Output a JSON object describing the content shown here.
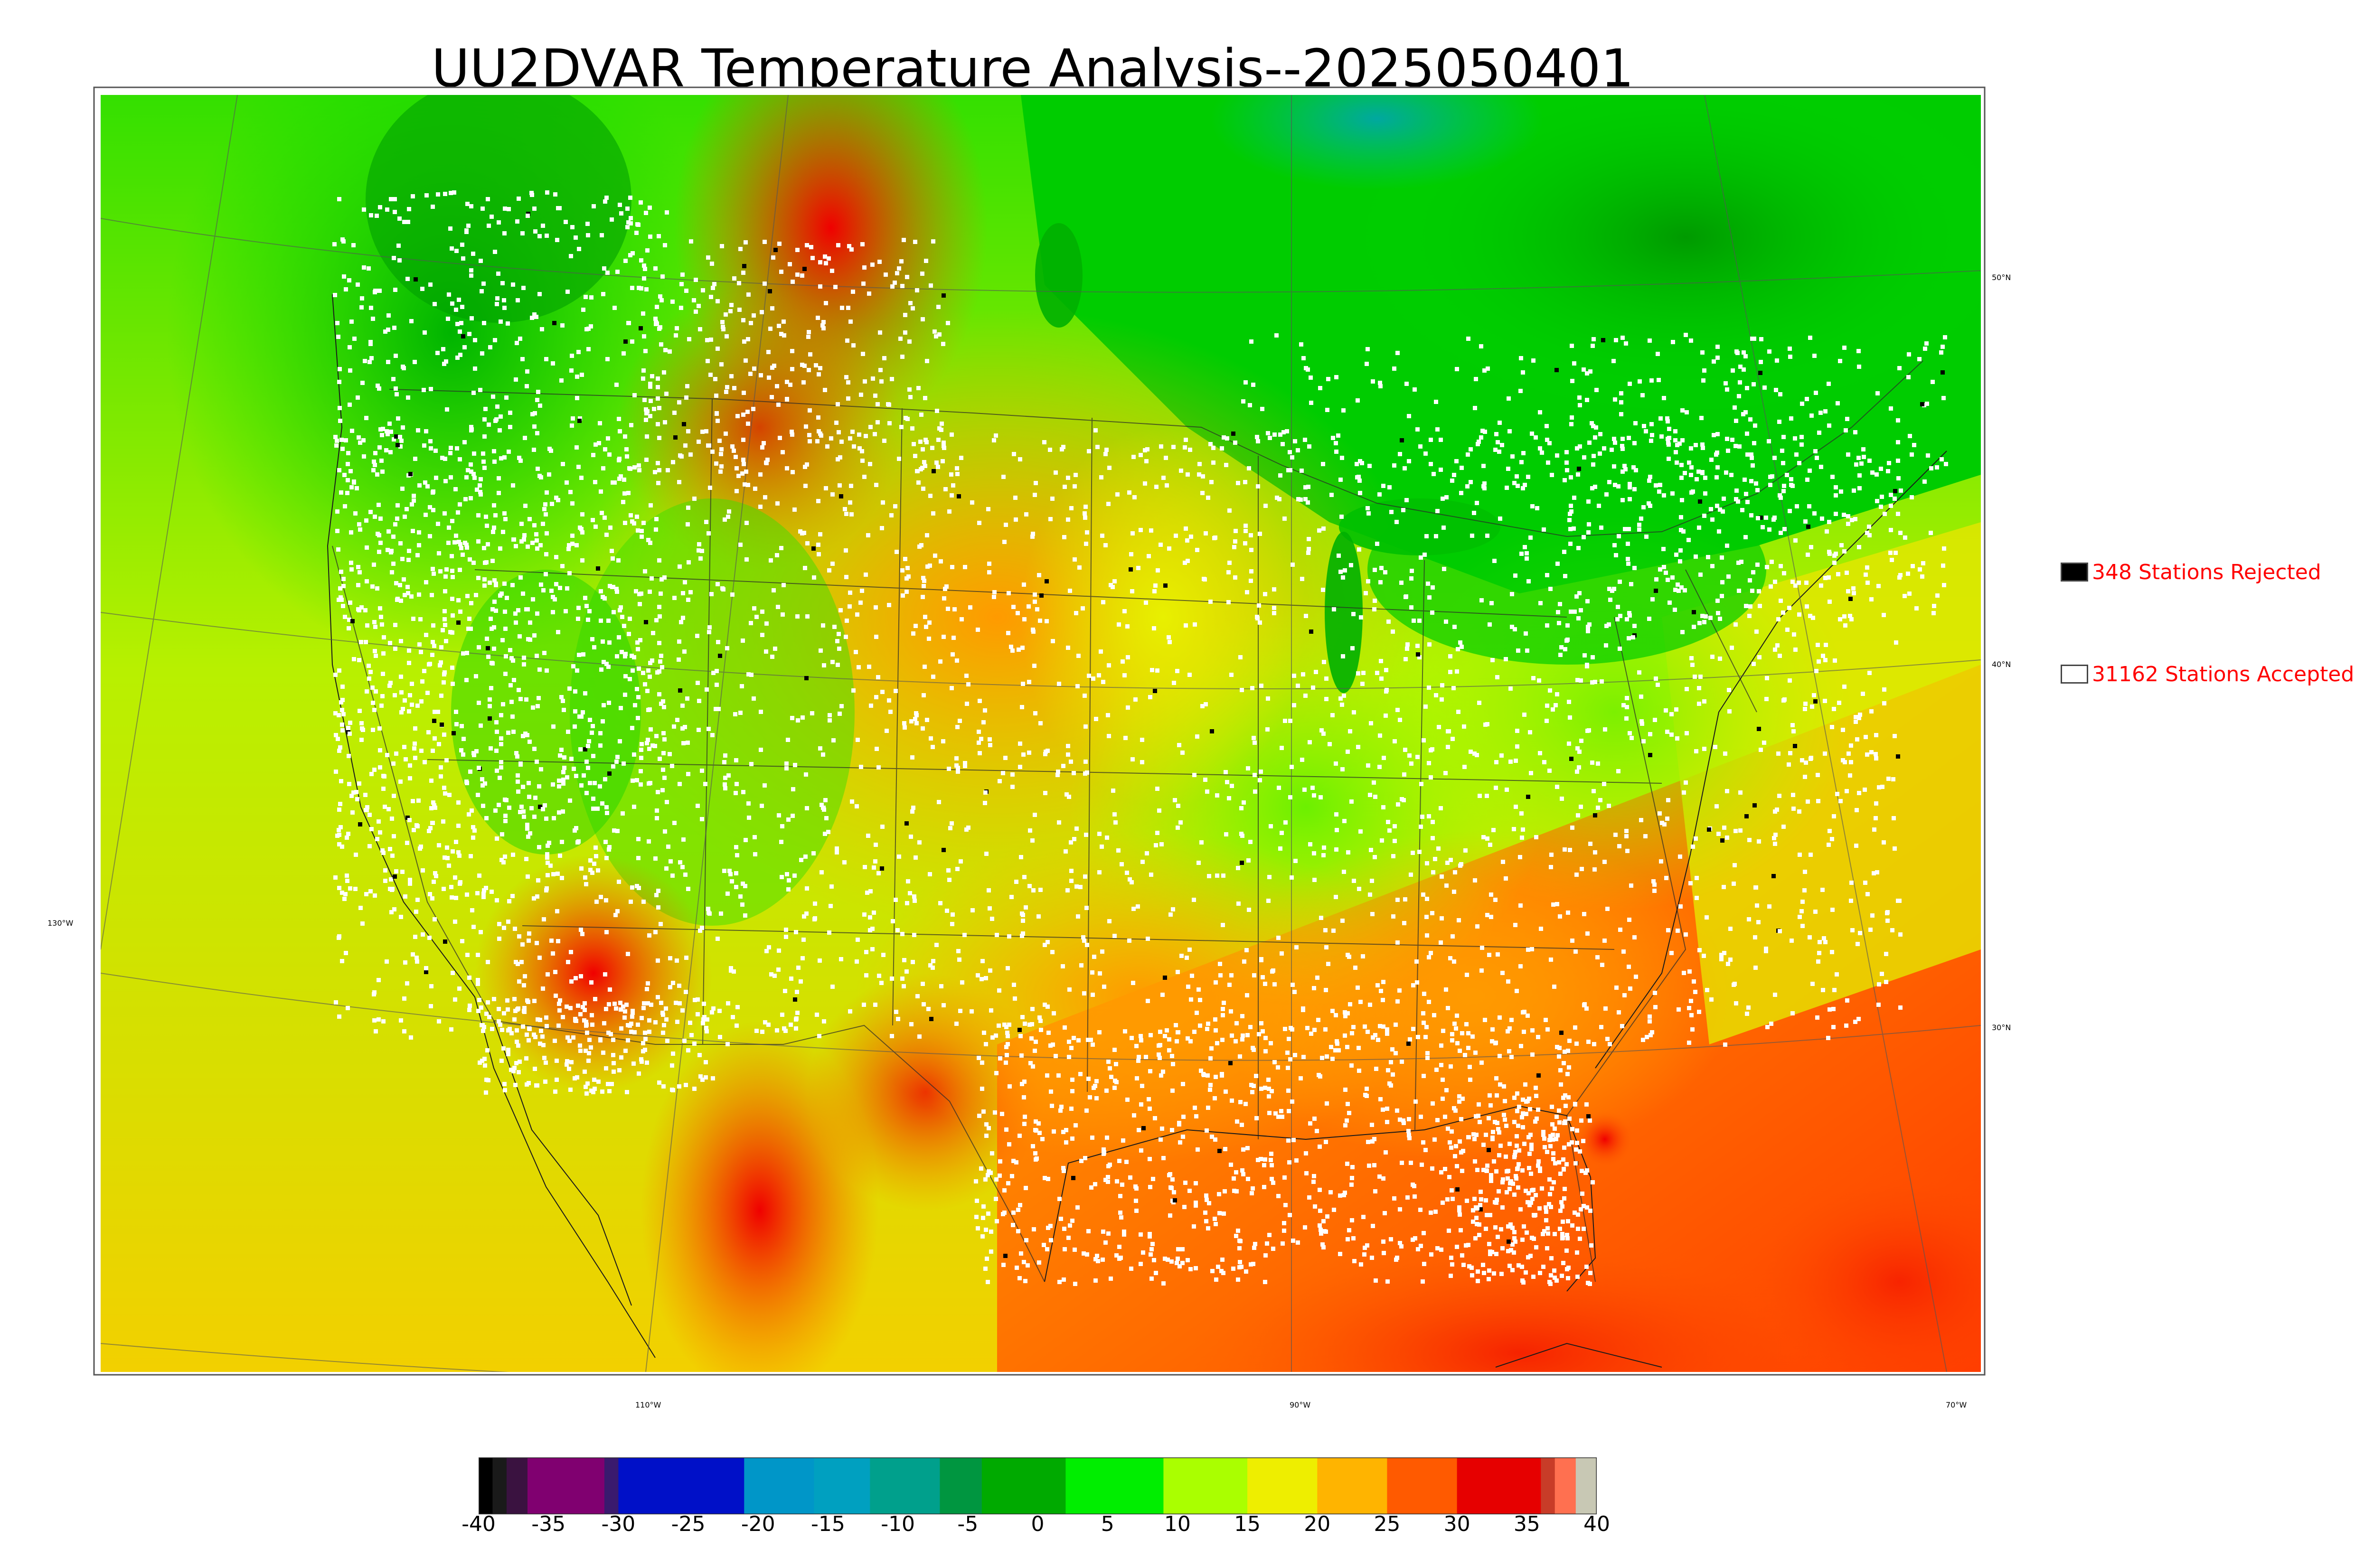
{
  "title": "UU2DVAR Temperature Analysis--2025050401",
  "legend": {
    "rejected": {
      "label": "348 Stations Rejected",
      "swatch_color": "#000000"
    },
    "accepted": {
      "label": "31162 Stations Accepted",
      "swatch_color": "#ffffff"
    }
  },
  "map_labels": {
    "lat_50": "50°N",
    "lat_40": "40°N",
    "lat_30": "30°N",
    "lon_130": "130°W",
    "lon_110": "110°W",
    "lon_90": "90°W",
    "lon_70": "70°W"
  },
  "colorbar": {
    "min": -40,
    "max": 40,
    "ticks": [
      "-40",
      "-35",
      "-30",
      "-25",
      "-20",
      "-15",
      "-10",
      "-5",
      "0",
      "5",
      "10",
      "15",
      "20",
      "25",
      "30",
      "35",
      "40"
    ],
    "colors": [
      {
        "from": -40,
        "to": -39,
        "color": "#000000"
      },
      {
        "from": -39,
        "to": -38,
        "color": "#1a1a1a"
      },
      {
        "from": -38,
        "to": -36.5,
        "color": "#3a1240"
      },
      {
        "from": -36.5,
        "to": -31,
        "color": "#800070"
      },
      {
        "from": -31,
        "to": -30,
        "color": "#3a1a6e"
      },
      {
        "from": -30,
        "to": -21,
        "color": "#0010c8"
      },
      {
        "from": -21,
        "to": -16,
        "color": "#0096c8"
      },
      {
        "from": -16,
        "to": -12,
        "color": "#00a0c0"
      },
      {
        "from": -12,
        "to": -7,
        "color": "#00a08c"
      },
      {
        "from": -7,
        "to": -4,
        "color": "#009640"
      },
      {
        "from": -4,
        "to": 2,
        "color": "#00aa00"
      },
      {
        "from": 2,
        "to": 9,
        "color": "#00ee00"
      },
      {
        "from": 9,
        "to": 15,
        "color": "#aaff00"
      },
      {
        "from": 15,
        "to": 20,
        "color": "#eeee00"
      },
      {
        "from": 20,
        "to": 25,
        "color": "#ffb400"
      },
      {
        "from": 25,
        "to": 30,
        "color": "#ff5a00"
      },
      {
        "from": 30,
        "to": 36,
        "color": "#e60000"
      },
      {
        "from": 36,
        "to": 37,
        "color": "#c83c28"
      },
      {
        "from": 37,
        "to": 38.5,
        "color": "#ff7050"
      },
      {
        "from": 38.5,
        "to": 40,
        "color": "#c8c8b4"
      }
    ]
  },
  "colors": {
    "ocean_pacific": "#d8e000",
    "ocean_gulf": "#ff6a00",
    "canada_cool": "#00c000",
    "station_accepted": "#ffffff",
    "station_rejected": "#000000",
    "legend_text": "#ff0000"
  }
}
